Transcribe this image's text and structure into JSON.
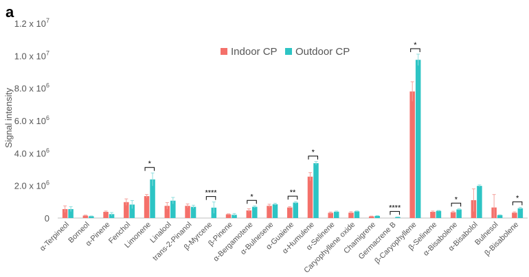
{
  "chart_data": {
    "type": "bar",
    "panel_label": "a",
    "xlabel": "",
    "ylabel": "Signal intensity",
    "ylim": [
      0,
      12000000
    ],
    "y_ticks": [
      {
        "value": 0,
        "label": "0"
      },
      {
        "value": 2000000,
        "label": "2.0 x 10",
        "exp": "6"
      },
      {
        "value": 4000000,
        "label": "4.0 x 10",
        "exp": "6"
      },
      {
        "value": 6000000,
        "label": "6.0 x 10",
        "exp": "6"
      },
      {
        "value": 8000000,
        "label": "8.0 x 10",
        "exp": "6"
      },
      {
        "value": 10000000,
        "label": "1.0 x 10",
        "exp": "7"
      },
      {
        "value": 12000000,
        "label": "1.2 x 10",
        "exp": "7"
      }
    ],
    "categories": [
      "α-Terpineol",
      "Borneol",
      "α-Pinene",
      "Fenchol",
      "Limonene",
      "Linalool",
      "trans-2-Pinanol",
      "β-Myrcene",
      "β-Pinene",
      "α-Bergamotene",
      "α-Bulnesene",
      "α-Guaiene",
      "α-Humulene",
      "α-Selinene",
      "Caryophyllene oxide",
      "Chamigrene",
      "Germacrene B",
      "β-Caryophyllene",
      "β-Selinene",
      "α-Bisabolene",
      "α-Bisabolol",
      "Bulnesol",
      "β-Bisabolene"
    ],
    "series": [
      {
        "name": "Indoor CP",
        "color": "#f4706a",
        "values": [
          550000,
          150000,
          380000,
          980000,
          1350000,
          750000,
          750000,
          0,
          230000,
          470000,
          750000,
          650000,
          2550000,
          320000,
          330000,
          100000,
          0,
          7800000,
          380000,
          360000,
          1100000,
          650000,
          330000
        ],
        "errors": [
          200000,
          30000,
          50000,
          200000,
          100000,
          200000,
          120000,
          0,
          30000,
          100000,
          100000,
          50000,
          250000,
          50000,
          60000,
          20000,
          0,
          600000,
          50000,
          60000,
          700000,
          800000,
          50000
        ]
      },
      {
        "name": "Outdoor CP",
        "color": "#2dc4c4",
        "values": [
          550000,
          110000,
          240000,
          830000,
          2380000,
          1070000,
          690000,
          640000,
          200000,
          690000,
          850000,
          950000,
          3380000,
          390000,
          410000,
          130000,
          60000,
          9750000,
          440000,
          530000,
          1980000,
          180000,
          600000
        ],
        "errors": [
          150000,
          20000,
          100000,
          250000,
          400000,
          200000,
          100000,
          350000,
          80000,
          60000,
          60000,
          60000,
          100000,
          40000,
          30000,
          20000,
          10000,
          350000,
          30000,
          50000,
          60000,
          20000,
          60000
        ]
      }
    ],
    "significance": [
      {
        "category_index": 4,
        "label": "*"
      },
      {
        "category_index": 7,
        "label": "****"
      },
      {
        "category_index": 9,
        "label": "*"
      },
      {
        "category_index": 11,
        "label": "**"
      },
      {
        "category_index": 12,
        "label": "*"
      },
      {
        "category_index": 16,
        "label": "****"
      },
      {
        "category_index": 17,
        "label": "*"
      },
      {
        "category_index": 19,
        "label": "*"
      },
      {
        "category_index": 22,
        "label": "*"
      }
    ],
    "legend_position": "top-center"
  }
}
